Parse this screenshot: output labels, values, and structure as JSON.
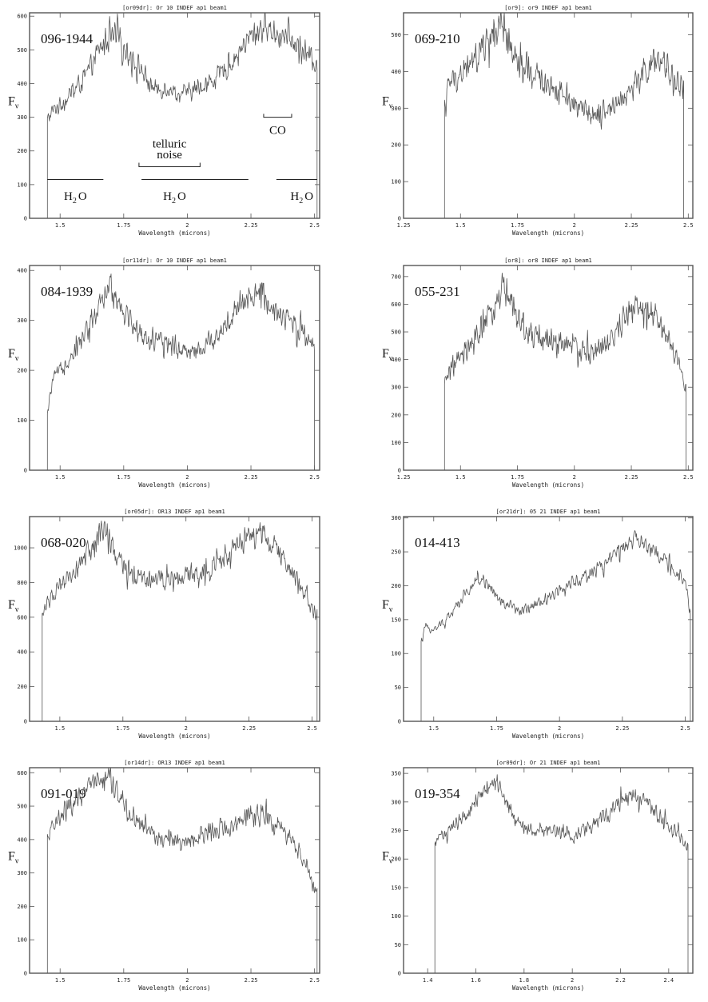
{
  "figure": {
    "ylabel_main": "F",
    "ylabel_sub": "ν"
  },
  "chart_data": [
    {
      "type": "line",
      "header": "[or09dr]: Or 10 INDEF ap1 beam1",
      "star": "096-1944",
      "xlabel": "Wavelength (microns)",
      "xlim": [
        1.38,
        2.52
      ],
      "ylim": [
        0,
        610
      ],
      "xticks": [
        1.5,
        1.75,
        2.0,
        2.25,
        2.5
      ],
      "xticklabels": [
        "1.5",
        "1.75",
        "2",
        "2.25",
        "2.5"
      ],
      "yticks": [
        0,
        100,
        200,
        300,
        400,
        500,
        600
      ],
      "start": 1.45,
      "end": 2.51,
      "x": [
        1.45,
        1.47,
        1.5,
        1.55,
        1.6,
        1.64,
        1.68,
        1.72,
        1.77,
        1.82,
        1.85,
        1.88,
        1.92,
        1.96,
        2.0,
        2.05,
        2.1,
        2.15,
        2.2,
        2.25,
        2.3,
        2.34,
        2.38,
        2.42,
        2.46,
        2.5
      ],
      "y": [
        290,
        320,
        335,
        375,
        420,
        480,
        530,
        540,
        490,
        440,
        400,
        380,
        390,
        370,
        370,
        390,
        410,
        440,
        490,
        540,
        570,
        555,
        540,
        520,
        500,
        460
      ],
      "noise": 0.09,
      "annotations": {
        "telluric": "telluric",
        "noise": "noise",
        "co": "CO",
        "h2o": "H",
        "h2o_sub": "2",
        "h2o_o": "O"
      }
    },
    {
      "type": "line",
      "header": "[or9]: or9 INDEF ap1 beam1",
      "star": "069-210",
      "xlabel": "Wavelength (microns)",
      "xlim": [
        1.25,
        2.52
      ],
      "ylim": [
        0,
        560
      ],
      "xticks": [
        1.25,
        1.5,
        1.75,
        2.0,
        2.25,
        2.5
      ],
      "xticklabels": [
        "1.25",
        "1.5",
        "1.75",
        "2",
        "2.25",
        "2.5"
      ],
      "yticks": [
        0,
        100,
        200,
        300,
        400,
        500
      ],
      "start": 1.43,
      "end": 2.48,
      "x": [
        1.43,
        1.45,
        1.5,
        1.55,
        1.6,
        1.64,
        1.68,
        1.72,
        1.76,
        1.8,
        1.85,
        1.9,
        1.95,
        2.0,
        2.05,
        2.1,
        2.15,
        2.2,
        2.25,
        2.3,
        2.35,
        2.4,
        2.44,
        2.48
      ],
      "y": [
        300,
        370,
        390,
        420,
        470,
        500,
        510,
        460,
        410,
        390,
        380,
        360,
        340,
        310,
        290,
        290,
        300,
        320,
        350,
        390,
        420,
        410,
        380,
        350
      ],
      "noise": 0.12
    },
    {
      "type": "line",
      "header": "[or11dr]: Or 10 INDEF ap1 beam1",
      "star": "084-1939",
      "xlabel": "Wavelength (microns)",
      "xlim": [
        1.38,
        2.52
      ],
      "ylim": [
        0,
        410
      ],
      "xticks": [
        1.5,
        1.75,
        2.0,
        2.25,
        2.5
      ],
      "xticklabels": [
        "1.5",
        "1.75",
        "2",
        "2.25",
        "2.5"
      ],
      "yticks": [
        0,
        100,
        200,
        300,
        400
      ],
      "start": 1.45,
      "end": 2.5,
      "x": [
        1.45,
        1.47,
        1.5,
        1.55,
        1.6,
        1.65,
        1.7,
        1.75,
        1.8,
        1.85,
        1.9,
        1.95,
        2.0,
        2.05,
        2.1,
        2.15,
        2.2,
        2.25,
        2.3,
        2.35,
        2.4,
        2.45,
        2.5
      ],
      "y": [
        110,
        180,
        200,
        235,
        275,
        320,
        370,
        320,
        280,
        260,
        255,
        250,
        240,
        240,
        265,
        290,
        320,
        345,
        350,
        320,
        300,
        280,
        250
      ],
      "noise": 0.1
    },
    {
      "type": "line",
      "header": "[or8]: or8 INDEF ap1 beam1",
      "star": "055-231",
      "xlabel": "Wavelength (microns)",
      "xlim": [
        1.25,
        2.52
      ],
      "ylim": [
        0,
        740
      ],
      "xticks": [
        1.25,
        1.5,
        1.75,
        2.0,
        2.25,
        2.5
      ],
      "xticklabels": [
        "1.25",
        "1.5",
        "1.75",
        "2",
        "2.25",
        "2.5"
      ],
      "yticks": [
        0,
        100,
        200,
        300,
        400,
        500,
        600,
        700
      ],
      "start": 1.43,
      "end": 2.49,
      "x": [
        1.43,
        1.45,
        1.5,
        1.55,
        1.6,
        1.65,
        1.69,
        1.72,
        1.76,
        1.8,
        1.85,
        1.9,
        1.95,
        2.0,
        2.05,
        2.1,
        2.15,
        2.2,
        2.25,
        2.3,
        2.35,
        2.4,
        2.45,
        2.49
      ],
      "y": [
        300,
        370,
        400,
        450,
        520,
        590,
        670,
        610,
        520,
        480,
        480,
        470,
        460,
        450,
        420,
        430,
        460,
        520,
        590,
        580,
        560,
        490,
        400,
        300
      ],
      "noise": 0.11
    },
    {
      "type": "line",
      "header": "[or05dr]: OR13 INDEF ap1 beam1",
      "star": "068-020",
      "xlabel": "Wavelength (microns)",
      "xlim": [
        1.38,
        2.53
      ],
      "ylim": [
        0,
        1180
      ],
      "xticks": [
        1.5,
        1.75,
        2.0,
        2.25,
        2.5
      ],
      "xticklabels": [
        "1.5",
        "1.75",
        "2",
        "2.25",
        "2.5"
      ],
      "yticks": [
        0,
        200,
        400,
        600,
        800,
        1000
      ],
      "start": 1.43,
      "end": 2.52,
      "x": [
        1.43,
        1.45,
        1.5,
        1.55,
        1.6,
        1.65,
        1.68,
        1.72,
        1.76,
        1.8,
        1.85,
        1.9,
        1.95,
        2.0,
        2.05,
        2.1,
        2.15,
        2.2,
        2.25,
        2.3,
        2.35,
        2.4,
        2.45,
        2.5,
        2.52
      ],
      "y": [
        600,
        700,
        760,
        850,
        950,
        1050,
        1080,
        950,
        880,
        850,
        830,
        830,
        840,
        840,
        860,
        900,
        950,
        1000,
        1050,
        1100,
        1000,
        900,
        800,
        650,
        600
      ],
      "noise": 0.09
    },
    {
      "type": "line",
      "header": "[or21dr]: 05 21 INDEF ap1 beam1",
      "star": "014-413",
      "xlabel": "Wavelength (microns)",
      "xlim": [
        1.38,
        2.53
      ],
      "ylim": [
        0,
        302
      ],
      "xticks": [
        1.5,
        1.75,
        2.0,
        2.25,
        2.5
      ],
      "xticklabels": [
        "1.5",
        "1.75",
        "2",
        "2.25",
        "2.5"
      ],
      "yticks": [
        0,
        50,
        100,
        150,
        200,
        250,
        300
      ],
      "start": 1.45,
      "end": 2.52,
      "x": [
        1.45,
        1.47,
        1.5,
        1.55,
        1.6,
        1.65,
        1.7,
        1.75,
        1.8,
        1.85,
        1.9,
        1.95,
        2.0,
        2.05,
        2.1,
        2.15,
        2.2,
        2.25,
        2.3,
        2.35,
        2.4,
        2.45,
        2.5,
        2.52
      ],
      "y": [
        115,
        140,
        135,
        150,
        175,
        200,
        210,
        185,
        170,
        165,
        170,
        180,
        195,
        205,
        215,
        225,
        240,
        255,
        270,
        260,
        240,
        225,
        200,
        160
      ],
      "noise": 0.06
    },
    {
      "type": "line",
      "header": "[or14dr]: OR13 INDEF ap1 beam1",
      "star": "091-019",
      "xlabel": "Wavelength (microns)",
      "xlim": [
        1.38,
        2.52
      ],
      "ylim": [
        0,
        615
      ],
      "xticks": [
        1.5,
        1.75,
        2.0,
        2.25,
        2.5
      ],
      "xticklabels": [
        "1.5",
        "1.75",
        "2",
        "2.25",
        "2.5"
      ],
      "yticks": [
        0,
        100,
        200,
        300,
        400,
        500,
        600
      ],
      "start": 1.45,
      "end": 2.51,
      "x": [
        1.45,
        1.47,
        1.5,
        1.55,
        1.6,
        1.65,
        1.69,
        1.73,
        1.77,
        1.82,
        1.86,
        1.9,
        1.95,
        2.0,
        2.05,
        2.1,
        2.15,
        2.2,
        2.25,
        2.3,
        2.35,
        2.4,
        2.45,
        2.5
      ],
      "y": [
        400,
        440,
        470,
        500,
        540,
        580,
        590,
        530,
        480,
        440,
        420,
        400,
        400,
        390,
        410,
        430,
        440,
        450,
        470,
        480,
        440,
        410,
        350,
        250
      ],
      "noise": 0.08
    },
    {
      "type": "line",
      "header": "[or09dr]: Or 21 INDEF ap1 beam1",
      "star": "019-354",
      "xlabel": "Wavelength (microns)",
      "xlim": [
        1.3,
        2.5
      ],
      "ylim": [
        0,
        360
      ],
      "xticks": [
        1.4,
        1.6,
        1.8,
        2.0,
        2.2,
        2.4
      ],
      "xticklabels": [
        "1.4",
        "1.6",
        "1.8",
        "2",
        "2.2",
        "2.4"
      ],
      "yticks": [
        0,
        50,
        100,
        150,
        200,
        250,
        300,
        350
      ],
      "start": 1.43,
      "end": 2.48,
      "x": [
        1.43,
        1.45,
        1.5,
        1.55,
        1.6,
        1.64,
        1.68,
        1.72,
        1.76,
        1.8,
        1.85,
        1.9,
        1.95,
        2.0,
        2.05,
        2.1,
        2.15,
        2.2,
        2.25,
        2.3,
        2.35,
        2.4,
        2.45,
        2.48
      ],
      "y": [
        220,
        240,
        255,
        270,
        300,
        320,
        340,
        310,
        270,
        255,
        250,
        255,
        250,
        240,
        250,
        265,
        280,
        300,
        310,
        300,
        280,
        260,
        240,
        225
      ],
      "noise": 0.06
    }
  ]
}
